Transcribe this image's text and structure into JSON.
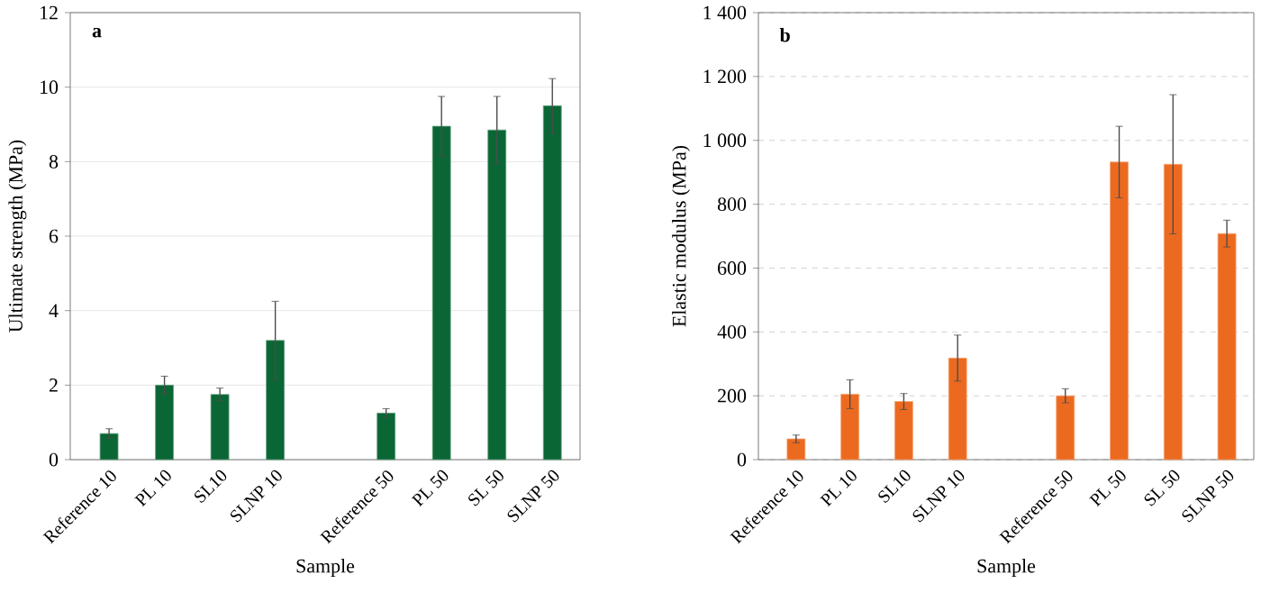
{
  "chart_data": [
    {
      "type": "bar",
      "annotations": [
        "a"
      ],
      "xlabel": "Sample",
      "ylabel": "Ultimate strength (MPa)",
      "categories": [
        "Reference 10",
        "PL 10",
        "SL10",
        "SLNP 10",
        null,
        "Reference 50",
        "PL 50",
        "SL 50",
        "SLNP 50"
      ],
      "series": [
        {
          "color": "#0a6634",
          "values": [
            0.7,
            2.0,
            1.75,
            3.2,
            null,
            1.25,
            8.95,
            8.85,
            9.5
          ],
          "errors": [
            0.13,
            0.24,
            0.17,
            1.05,
            null,
            0.12,
            0.8,
            0.9,
            0.73
          ]
        }
      ],
      "ylim": [
        0,
        12
      ],
      "yticks": [
        0,
        2,
        4,
        6,
        8,
        10,
        12
      ],
      "grid": "y"
    },
    {
      "type": "bar",
      "annotations": [
        "b"
      ],
      "xlabel": "Sample",
      "ylabel": "Elastic modulus (MPa)",
      "categories": [
        "Reference 10",
        "PL 10",
        "SL10",
        "SLNP 10",
        null,
        "Reference 50",
        "PL 50",
        "SL 50",
        "SLNP 50"
      ],
      "series": [
        {
          "color": "#ec6a1f",
          "values": [
            65,
            205,
            182,
            318,
            null,
            200,
            932,
            925,
            708
          ],
          "errors": [
            12,
            45,
            25,
            72,
            null,
            22,
            112,
            218,
            42
          ]
        }
      ],
      "ylim": [
        0,
        1400
      ],
      "yticks": [
        0,
        200,
        400,
        600,
        800,
        {
          "value": 1000,
          "label": "1 000"
        },
        {
          "value": 1200,
          "label": "1 200"
        },
        {
          "value": 1400,
          "label": "1 400"
        }
      ],
      "grid": "y"
    }
  ]
}
